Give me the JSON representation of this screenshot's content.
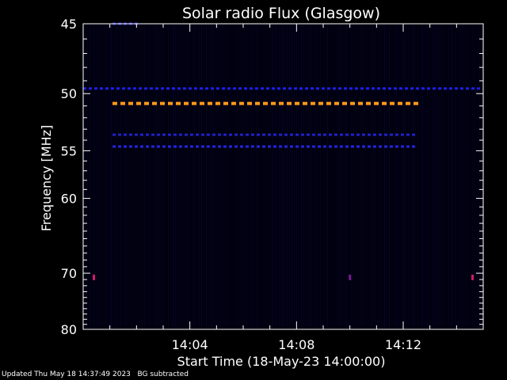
{
  "chart_data": {
    "type": "heatmap",
    "title": "Solar radio Flux (Glasgow)",
    "xlabel": "Start Time (18-May-23 14:00:00)",
    "ylabel": "Frequency [MHz]",
    "xlim_minutes": [
      0.0,
      15.0
    ],
    "ylim": [
      45,
      80
    ],
    "yscale": "reciprocal",
    "xticks": [
      {
        "minutes": 4,
        "label": "14:04"
      },
      {
        "minutes": 8,
        "label": "14:08"
      },
      {
        "minutes": 12,
        "label": "14:12"
      }
    ],
    "yticks": [
      45,
      50,
      55,
      60,
      70,
      80
    ],
    "background_color": "#000010",
    "bands": [
      {
        "freq": 45.0,
        "start": 1.1,
        "end": 2.1,
        "color": "#2a2ad0",
        "level": "low"
      },
      {
        "freq": 49.6,
        "start": 0.0,
        "end": 15.0,
        "color": "#1e1ee8",
        "level": "medium"
      },
      {
        "freq": 50.8,
        "start": 1.1,
        "end": 12.5,
        "color": "#ff9a1a",
        "level": "high"
      },
      {
        "freq": 53.5,
        "start": 1.1,
        "end": 12.5,
        "color": "#2020c8",
        "level": "medium"
      },
      {
        "freq": 54.6,
        "start": 1.1,
        "end": 12.5,
        "color": "#2424e0",
        "level": "medium"
      }
    ],
    "spots": [
      {
        "freq": 70.6,
        "minutes": 0.4,
        "color": "#d01a70"
      },
      {
        "freq": 70.6,
        "minutes": 10.0,
        "color": "#7a1a90"
      },
      {
        "freq": 70.6,
        "minutes": 14.6,
        "color": "#d01a70"
      }
    ]
  },
  "footer": {
    "updated": "Updated Thu May 18 14:37:49 2023",
    "note": "BG subtracted"
  }
}
